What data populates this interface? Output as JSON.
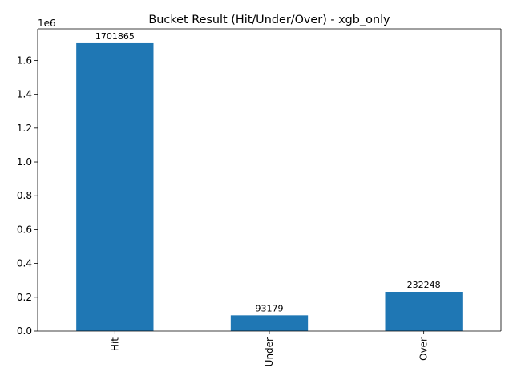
{
  "chart_data": {
    "type": "bar",
    "title": "Bucket Result (Hit/Under/Over) - xgb_only",
    "xlabel": "",
    "ylabel": "",
    "categories": [
      "Hit",
      "Under",
      "Over"
    ],
    "values": [
      1701865,
      93179,
      232248
    ],
    "data_labels": [
      "1701865",
      "93179",
      "232248"
    ],
    "ylim": [
      0,
      1786958
    ],
    "y_ticks": [
      0,
      200000,
      400000,
      600000,
      800000,
      1000000,
      1200000,
      1400000,
      1600000
    ],
    "y_tick_labels": [
      "0.0",
      "0.2",
      "0.4",
      "0.6",
      "0.8",
      "1.0",
      "1.2",
      "1.4",
      "1.6"
    ],
    "y_offset_label": "1e6",
    "bar_color": "#1f77b4",
    "grid": false,
    "legend": false
  }
}
